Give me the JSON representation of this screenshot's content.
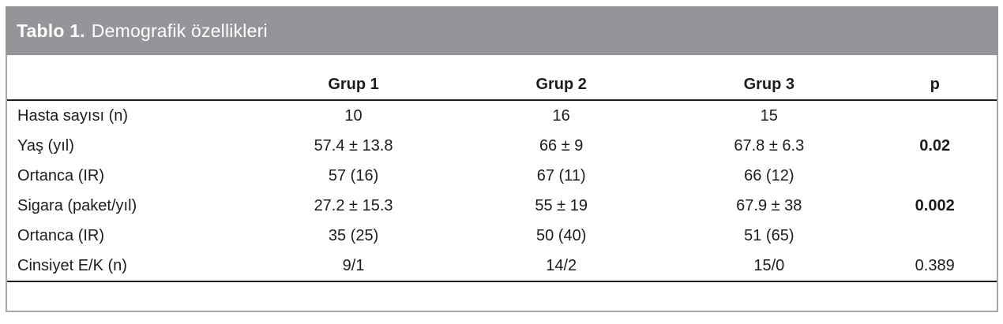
{
  "title": {
    "label": "Tablo 1.",
    "text": "Demografik özellikleri"
  },
  "colors": {
    "title_bar_bg": "#939599",
    "title_text": "#ffffff",
    "outer_border": "#a6a7aa",
    "rule_lines": "#1c1c1c",
    "body_text": "#1c1c1c"
  },
  "table": {
    "columns": [
      "",
      "Grup 1",
      "Grup 2",
      "Grup 3",
      "p"
    ],
    "rows": [
      {
        "label": "Hasta sayısı (n)",
        "grup1": "10",
        "grup2": "16",
        "grup3": "15",
        "p": "",
        "p_bold": false
      },
      {
        "label": "Yaş (yıl)",
        "grup1": "57.4 ± 13.8",
        "grup2": "66 ± 9",
        "grup3": "67.8 ± 6.3",
        "p": "0.02",
        "p_bold": true
      },
      {
        "label": "Ortanca (IR)",
        "grup1": "57 (16)",
        "grup2": "67 (11)",
        "grup3": "66 (12)",
        "p": "",
        "p_bold": false
      },
      {
        "label": "Sigara (paket/yıl)",
        "grup1": "27.2 ± 15.3",
        "grup2": "55 ± 19",
        "grup3": "67.9 ± 38",
        "p": "0.002",
        "p_bold": true
      },
      {
        "label": "Ortanca (IR)",
        "grup1": "35 (25)",
        "grup2": "50 (40)",
        "grup3": "51 (65)",
        "p": "",
        "p_bold": false
      },
      {
        "label": "Cinsiyet E/K (n)",
        "grup1": "9/1",
        "grup2": "14/2",
        "grup3": "15/0",
        "p": "0.389",
        "p_bold": false
      }
    ]
  }
}
